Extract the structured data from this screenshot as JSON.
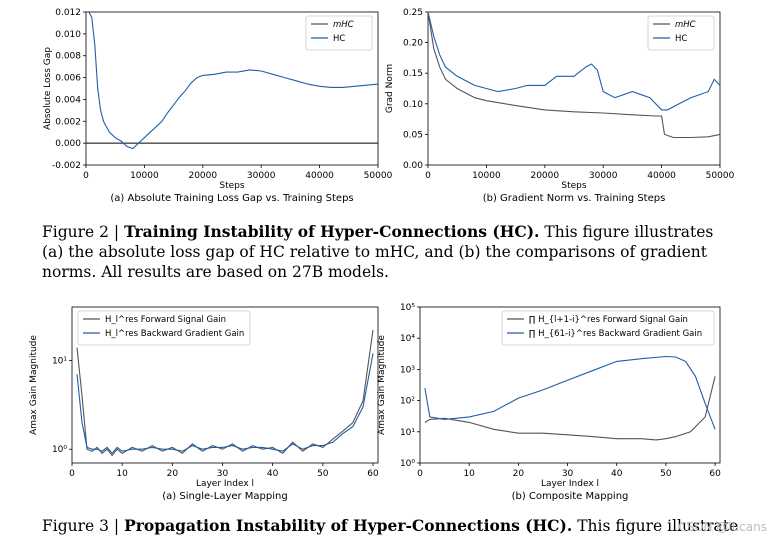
{
  "figure2": {
    "caption_label": "Figure 2 |",
    "caption_title": "Training Instability of Hyper-Connections (HC).",
    "caption_text": "This figure illustrates (a) the absolute loss gap of HC relative to mHC, and (b) the comparisons of gradient norms. All results are based on 27B models."
  },
  "figure3": {
    "caption_label": "Figure 3 |",
    "caption_title": "Propagation Instability of Hyper-Connections (HC).",
    "caption_text": "This figure illustrates the"
  },
  "watermark": "CSDN @lucans",
  "colors": {
    "hc": "#1f5fa8",
    "mhc": "#555555",
    "zero_line": "#000000"
  },
  "chart_data": [
    {
      "id": "a",
      "type": "line",
      "title": "(a) Absolute Training Loss Gap vs. Training Steps",
      "xlabel": "Steps",
      "ylabel": "Absolute Loss Gap",
      "xlim": [
        0,
        50000
      ],
      "ylim": [
        -0.002,
        0.012
      ],
      "xticks": [
        0,
        10000,
        20000,
        30000,
        40000,
        50000
      ],
      "yticks": [
        -0.002,
        0.0,
        0.002,
        0.004,
        0.006,
        0.008,
        0.01,
        0.012
      ],
      "ytick_labels": [
        "-0.002",
        "0.000",
        "0.002",
        "0.004",
        "0.006",
        "0.008",
        "0.010",
        "0.012"
      ],
      "legend": [
        "mHC",
        "HC"
      ],
      "legend_loc": "top-right",
      "series": [
        {
          "name": "mHC",
          "x": [
            0,
            50000
          ],
          "y": [
            0,
            0
          ]
        },
        {
          "name": "HC",
          "x": [
            500,
            1000,
            1500,
            2000,
            2500,
            3000,
            3500,
            4000,
            5000,
            6000,
            7000,
            8000,
            9000,
            10000,
            11000,
            12000,
            13000,
            14000,
            15000,
            16000,
            17000,
            18000,
            19000,
            20000,
            22000,
            24000,
            26000,
            28000,
            30000,
            32000,
            34000,
            36000,
            38000,
            40000,
            42000,
            44000,
            46000,
            48000,
            50000
          ],
          "y": [
            0.012,
            0.0115,
            0.009,
            0.005,
            0.003,
            0.002,
            0.0015,
            0.001,
            0.0005,
            0.0002,
            -0.0003,
            -0.0005,
            0.0,
            0.0005,
            0.001,
            0.0015,
            0.002,
            0.0028,
            0.0035,
            0.0042,
            0.0048,
            0.0055,
            0.006,
            0.0062,
            0.0063,
            0.0065,
            0.0065,
            0.0067,
            0.0066,
            0.0063,
            0.006,
            0.0057,
            0.0054,
            0.0052,
            0.0051,
            0.0051,
            0.0052,
            0.0053,
            0.0054
          ]
        }
      ]
    },
    {
      "id": "b",
      "type": "line",
      "title": "(b) Gradient Norm vs. Training Steps",
      "xlabel": "Steps",
      "ylabel": "Grad Norm",
      "xlim": [
        0,
        50000
      ],
      "ylim": [
        0.0,
        0.25
      ],
      "xticks": [
        0,
        10000,
        20000,
        30000,
        40000,
        50000
      ],
      "yticks": [
        0.0,
        0.05,
        0.1,
        0.15,
        0.2,
        0.25
      ],
      "ytick_labels": [
        "0.00",
        "0.05",
        "0.10",
        "0.15",
        "0.20",
        "0.25"
      ],
      "legend": [
        "mHC",
        "HC"
      ],
      "legend_loc": "top-right",
      "series": [
        {
          "name": "mHC",
          "x": [
            0,
            1000,
            2000,
            3000,
            5000,
            8000,
            10000,
            15000,
            20000,
            25000,
            30000,
            35000,
            39000,
            40000,
            40500,
            42000,
            45000,
            48000,
            50000
          ],
          "y": [
            0.25,
            0.19,
            0.16,
            0.14,
            0.125,
            0.11,
            0.105,
            0.097,
            0.09,
            0.087,
            0.085,
            0.082,
            0.08,
            0.08,
            0.05,
            0.045,
            0.045,
            0.046,
            0.05
          ]
        },
        {
          "name": "HC",
          "x": [
            0,
            1000,
            2000,
            3000,
            5000,
            8000,
            10000,
            12000,
            15000,
            17000,
            20000,
            22000,
            25000,
            27000,
            28000,
            29000,
            30000,
            32000,
            35000,
            38000,
            40000,
            41000,
            43000,
            45000,
            48000,
            49000,
            50000
          ],
          "y": [
            0.25,
            0.21,
            0.18,
            0.16,
            0.145,
            0.13,
            0.125,
            0.12,
            0.125,
            0.13,
            0.13,
            0.145,
            0.145,
            0.16,
            0.165,
            0.155,
            0.12,
            0.11,
            0.12,
            0.11,
            0.09,
            0.09,
            0.1,
            0.11,
            0.12,
            0.14,
            0.13
          ]
        }
      ]
    },
    {
      "id": "c",
      "type": "line",
      "title": "(a) Single-Layer Mapping",
      "xlabel": "Layer Index l",
      "ylabel": "Amax Gain Magnitude",
      "xlim": [
        0,
        61
      ],
      "yscale": "log",
      "ylim": [
        0.7,
        40
      ],
      "xticks": [
        0,
        10,
        20,
        30,
        40,
        50,
        60
      ],
      "yticks": [
        1,
        10
      ],
      "ytick_labels": [
        "10⁰",
        "10¹"
      ],
      "legend": [
        "H_l^res Forward Signal Gain",
        "H_l^res Backward Gradient Gain"
      ],
      "legend_loc": "top-left",
      "series": [
        {
          "name": "H_l^res Forward Signal Gain",
          "x": [
            1,
            2,
            3,
            4,
            5,
            6,
            7,
            8,
            9,
            10,
            12,
            14,
            16,
            18,
            20,
            22,
            24,
            26,
            28,
            30,
            32,
            34,
            36,
            38,
            40,
            42,
            44,
            46,
            48,
            50,
            52,
            54,
            56,
            58,
            60
          ],
          "y": [
            14,
            4,
            1.0,
            0.95,
            1.05,
            0.9,
            1.0,
            0.85,
            1.0,
            0.9,
            1.05,
            0.95,
            1.1,
            0.95,
            1.05,
            0.9,
            1.15,
            0.95,
            1.1,
            1.0,
            1.15,
            0.95,
            1.1,
            1.0,
            1.05,
            0.9,
            1.2,
            0.95,
            1.15,
            1.05,
            1.3,
            1.6,
            2.0,
            3.5,
            22
          ]
        },
        {
          "name": "H_l^res Backward Gradient Gain",
          "x": [
            1,
            2,
            3,
            4,
            5,
            6,
            7,
            8,
            9,
            10,
            12,
            14,
            16,
            18,
            20,
            22,
            24,
            26,
            28,
            30,
            32,
            34,
            36,
            38,
            40,
            42,
            44,
            46,
            48,
            50,
            52,
            54,
            56,
            58,
            60
          ],
          "y": [
            7,
            2,
            1.05,
            1.0,
            1.0,
            0.95,
            1.05,
            0.9,
            1.05,
            0.95,
            1.0,
            1.0,
            1.05,
            1.0,
            1.0,
            0.95,
            1.1,
            1.0,
            1.05,
            1.05,
            1.1,
            1.0,
            1.05,
            1.05,
            1.0,
            0.95,
            1.15,
            1.0,
            1.1,
            1.1,
            1.2,
            1.5,
            1.8,
            3.0,
            12
          ]
        }
      ]
    },
    {
      "id": "d",
      "type": "line",
      "title": "(b) Composite Mapping",
      "xlabel": "Layer Index l",
      "ylabel": "Amax Gain Magnitude",
      "xlim": [
        0,
        61
      ],
      "yscale": "log",
      "ylim": [
        1,
        100000
      ],
      "xticks": [
        0,
        10,
        20,
        30,
        40,
        50,
        60
      ],
      "yticks": [
        1,
        10,
        100,
        1000,
        10000,
        100000
      ],
      "ytick_labels": [
        "10⁰",
        "10¹",
        "10²",
        "10³",
        "10⁴",
        "10⁵"
      ],
      "legend": [
        "∏ H_{l+1-i}^res Forward Signal Gain",
        "∏ H_{61-i}^res Backward Gradient Gain"
      ],
      "legend_loc": "top-right",
      "series": [
        {
          "name": "∏ H_{l+1-i}^res Forward Signal Gain",
          "x": [
            1,
            2,
            5,
            10,
            15,
            20,
            25,
            30,
            35,
            40,
            45,
            48,
            50,
            52,
            55,
            58,
            60
          ],
          "y": [
            20,
            25,
            27,
            20,
            12,
            9,
            9,
            8,
            7,
            6,
            6,
            5.5,
            6,
            7,
            10,
            30,
            600
          ]
        },
        {
          "name": "∏ H_{61-i}^res Backward Gradient Gain",
          "x": [
            1,
            2,
            5,
            10,
            15,
            20,
            25,
            30,
            35,
            40,
            45,
            50,
            52,
            54,
            56,
            58,
            60
          ],
          "y": [
            250,
            30,
            25,
            30,
            45,
            120,
            220,
            450,
            900,
            1800,
            2200,
            2600,
            2500,
            1800,
            600,
            80,
            12
          ]
        }
      ]
    }
  ]
}
